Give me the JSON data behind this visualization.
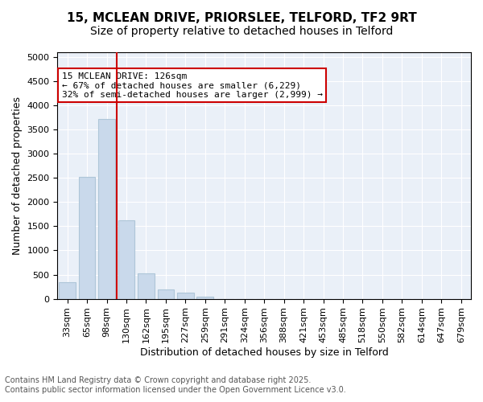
{
  "title_line1": "15, MCLEAN DRIVE, PRIORSLEE, TELFORD, TF2 9RT",
  "title_line2": "Size of property relative to detached houses in Telford",
  "xlabel": "Distribution of detached houses by size in Telford",
  "ylabel": "Number of detached properties",
  "categories": [
    "33sqm",
    "65sqm",
    "98sqm",
    "130sqm",
    "162sqm",
    "195sqm",
    "227sqm",
    "259sqm",
    "291sqm",
    "324sqm",
    "356sqm",
    "388sqm",
    "421sqm",
    "453sqm",
    "485sqm",
    "518sqm",
    "550sqm",
    "582sqm",
    "614sqm",
    "647sqm",
    "679sqm"
  ],
  "values": [
    350,
    2520,
    3720,
    1620,
    530,
    200,
    120,
    50,
    0,
    0,
    0,
    0,
    0,
    0,
    0,
    0,
    0,
    0,
    0,
    0,
    0
  ],
  "bar_color": "#c9d9eb",
  "bar_edge_color": "#aec6d8",
  "vline_x": 3,
  "vline_color": "#cc0000",
  "annotation_text": "15 MCLEAN DRIVE: 126sqm\n← 67% of detached houses are smaller (6,229)\n32% of semi-detached houses are larger (2,999) →",
  "annotation_box_color": "#ffffff",
  "annotation_box_edge_color": "#cc0000",
  "ylim": [
    0,
    5100
  ],
  "yticks": [
    0,
    500,
    1000,
    1500,
    2000,
    2500,
    3000,
    3500,
    4000,
    4500,
    5000
  ],
  "background_color": "#eaf0f8",
  "footer_line1": "Contains HM Land Registry data © Crown copyright and database right 2025.",
  "footer_line2": "Contains public sector information licensed under the Open Government Licence v3.0.",
  "title_fontsize": 11,
  "subtitle_fontsize": 10,
  "axis_label_fontsize": 9,
  "tick_fontsize": 8,
  "annotation_fontsize": 8,
  "footer_fontsize": 7
}
